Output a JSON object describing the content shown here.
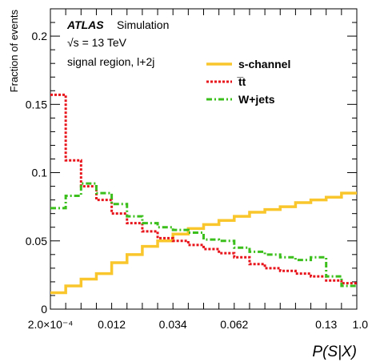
{
  "chart_data": {
    "type": "line",
    "title": "",
    "xlabel": "P(S|X)",
    "ylabel": "Fraction of events",
    "ylim": [
      0,
      0.22
    ],
    "yticks": [
      0,
      0.05,
      0.1,
      0.15,
      0.2
    ],
    "ytick_labels": [
      "0",
      "0.05",
      "0.1",
      "0.15",
      "0.2"
    ],
    "x_bins": 20,
    "xtick_labels": [
      {
        "bin_edge": 0,
        "label": "2.0×10⁻⁴"
      },
      {
        "bin_edge": 4,
        "label": "0.012"
      },
      {
        "bin_edge": 8,
        "label": "0.034"
      },
      {
        "bin_edge": 12,
        "label": "0.062"
      },
      {
        "bin_edge": 18,
        "label": "0.13"
      },
      {
        "bin_edge": 20,
        "label": "1.0"
      }
    ],
    "annotations": {
      "experiment": "ATLAS",
      "status": "Simulation",
      "energy": "√s = 13 TeV",
      "region": "signal region, l+2j"
    },
    "legend_position": "top-right",
    "series": [
      {
        "name": "s-channel",
        "color": "#f9c62b",
        "dash": "solid",
        "values": [
          0.012,
          0.017,
          0.022,
          0.026,
          0.034,
          0.04,
          0.046,
          0.05,
          0.055,
          0.059,
          0.062,
          0.065,
          0.068,
          0.071,
          0.073,
          0.075,
          0.078,
          0.08,
          0.082,
          0.085
        ]
      },
      {
        "name": "t̅t",
        "color": "#e8141b",
        "dash": "dotted",
        "values": [
          0.157,
          0.109,
          0.09,
          0.08,
          0.07,
          0.063,
          0.057,
          0.052,
          0.05,
          0.047,
          0.044,
          0.041,
          0.038,
          0.033,
          0.03,
          0.028,
          0.026,
          0.024,
          0.021,
          0.019
        ]
      },
      {
        "name": "W+jets",
        "color": "#3bbf1c",
        "dash": "dashdot",
        "values": [
          0.074,
          0.083,
          0.092,
          0.085,
          0.077,
          0.068,
          0.063,
          0.06,
          0.058,
          0.056,
          0.051,
          0.05,
          0.045,
          0.042,
          0.04,
          0.038,
          0.036,
          0.038,
          0.024,
          0.017
        ]
      }
    ]
  }
}
